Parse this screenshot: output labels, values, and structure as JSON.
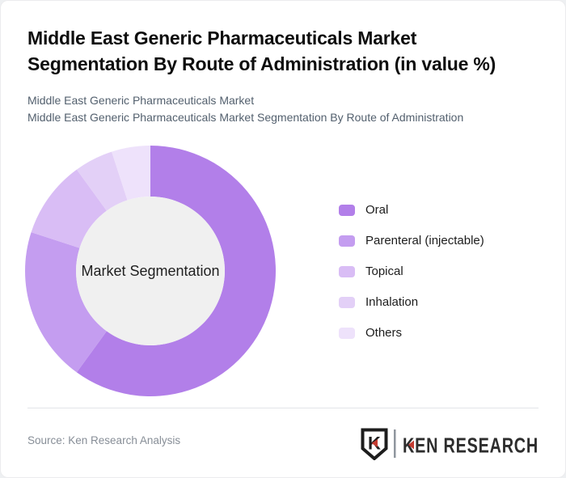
{
  "page": {
    "title_line1": "Middle East Generic Pharmaceuticals Market",
    "title_line2": "Segmentation By Route of Administration (in value %)",
    "subtitle_line1": "Middle East Generic Pharmaceuticals Market",
    "subtitle_line2": "Middle East Generic Pharmaceuticals Market Segmentation By Route of Administration"
  },
  "chart_data": {
    "type": "pie",
    "subtype": "donut",
    "title": "Middle East Generic Pharmaceuticals Market Segmentation By Route of Administration (in value %)",
    "unit": "value %",
    "center_label": "Market Segmentation",
    "start_angle_deg": 0,
    "direction": "clockwise",
    "legend_position": "right",
    "inner_circle_color": "#f0f0f0",
    "series": [
      {
        "id": "oral",
        "label": "Oral",
        "value": 60,
        "color": "#b27fe9"
      },
      {
        "id": "parenteral",
        "label": "Parenteral (injectable)",
        "value": 20,
        "color": "#c49df0"
      },
      {
        "id": "topical",
        "label": "Topical",
        "value": 10,
        "color": "#d9bdf5"
      },
      {
        "id": "inhalation",
        "label": "Inhalation",
        "value": 5,
        "color": "#e3d0f7"
      },
      {
        "id": "others",
        "label": "Others",
        "value": 5,
        "color": "#eee2fb"
      }
    ]
  },
  "footer": {
    "source": "Source: Ken Research Analysis",
    "logo_monogram": "K",
    "logo_text": "KEN RESEARCH"
  },
  "colors": {
    "accent_red": "#c43b31",
    "logo_dark": "#2d2d2d",
    "subtitle_gray": "#53606e",
    "source_gray": "#878e97",
    "divider_gray": "#e3e4e8"
  }
}
